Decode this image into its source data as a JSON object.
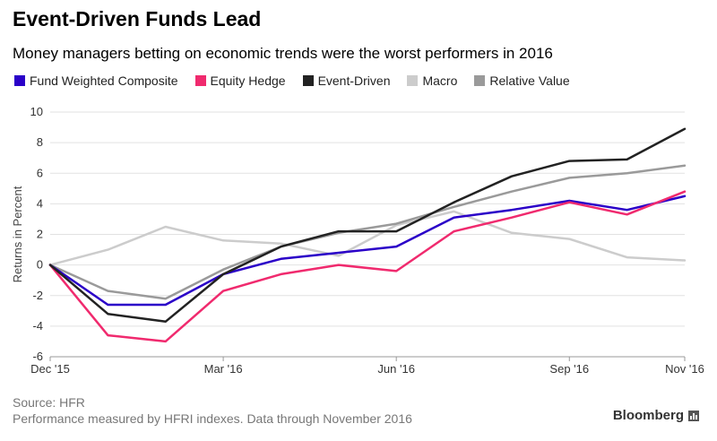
{
  "chart_data": {
    "type": "line",
    "title": "Event-Driven Funds Lead",
    "subtitle": "Money managers betting on economic trends were the worst performers in 2016",
    "ylabel": "Returns in Percent",
    "xlabel": "",
    "ylim": [
      -6,
      10
    ],
    "yticks": [
      -6,
      -4,
      -2,
      0,
      2,
      4,
      6,
      8,
      10
    ],
    "x": [
      0,
      1,
      2,
      3,
      4,
      5,
      6,
      7,
      8,
      9,
      10,
      11
    ],
    "xticks": [
      {
        "x": 0,
        "label": "Dec '15"
      },
      {
        "x": 3,
        "label": "Mar '16"
      },
      {
        "x": 6,
        "label": "Jun '16"
      },
      {
        "x": 9,
        "label": "Sep '16"
      },
      {
        "x": 11,
        "label": "Nov '16"
      }
    ],
    "legend_position": "top",
    "grid": true,
    "series": [
      {
        "name": "Fund Weighted Composite",
        "color": "#2a00c8",
        "values": [
          0,
          -2.6,
          -2.6,
          -0.6,
          0.4,
          0.8,
          1.2,
          3.1,
          3.6,
          4.2,
          3.6,
          4.5
        ]
      },
      {
        "name": "Equity Hedge",
        "color": "#f02a6e",
        "values": [
          0,
          -4.6,
          -5.0,
          -1.7,
          -0.6,
          0.0,
          -0.4,
          2.2,
          3.1,
          4.1,
          3.3,
          4.8
        ]
      },
      {
        "name": "Event-Driven",
        "color": "#222222",
        "values": [
          0,
          -3.2,
          -3.7,
          -0.6,
          1.2,
          2.2,
          2.2,
          4.1,
          5.8,
          6.8,
          6.9,
          8.9
        ]
      },
      {
        "name": "Macro",
        "color": "#cccccc",
        "values": [
          0,
          1.0,
          2.5,
          1.6,
          1.4,
          0.6,
          2.6,
          3.5,
          2.1,
          1.7,
          0.5,
          0.3
        ]
      },
      {
        "name": "Relative Value",
        "color": "#9a9a9a",
        "values": [
          0,
          -1.7,
          -2.2,
          -0.3,
          1.2,
          2.1,
          2.7,
          3.8,
          4.8,
          5.7,
          6.0,
          6.5
        ]
      }
    ]
  },
  "footer": {
    "source": "Source: HFR",
    "note": "Performance measured by HFRI indexes. Data through November 2016",
    "brand": "Bloomberg"
  }
}
